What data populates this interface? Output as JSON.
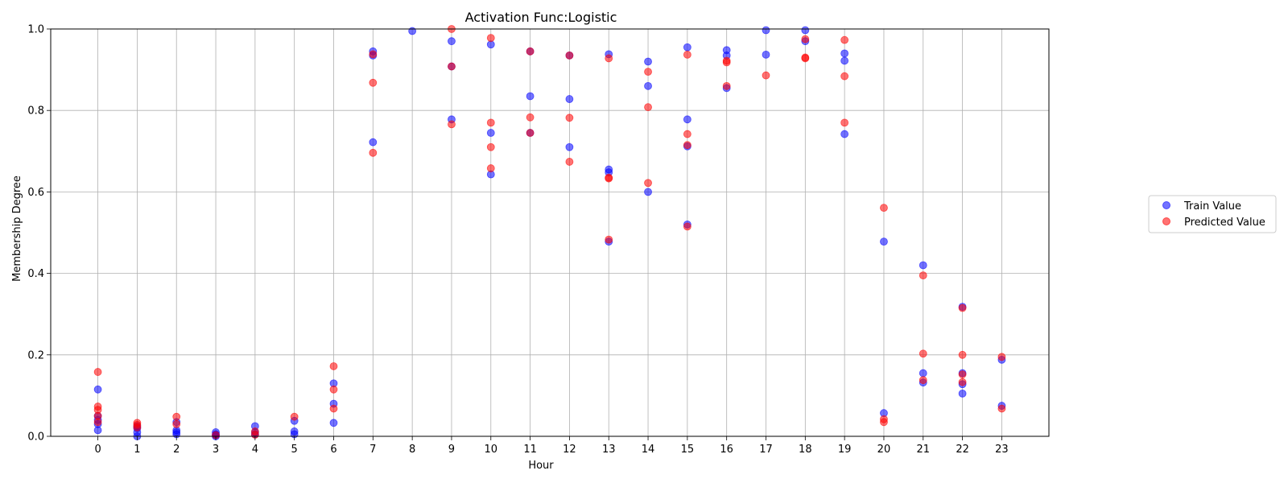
{
  "chart_data": {
    "type": "scatter",
    "title": "Activation Func:Logistic",
    "xlabel": "Hour",
    "ylabel": "Membership Degree",
    "xlim": [
      -1.2,
      24.2
    ],
    "ylim": [
      0,
      1
    ],
    "x_ticks": [
      0,
      1,
      2,
      3,
      4,
      5,
      6,
      7,
      8,
      9,
      10,
      11,
      12,
      13,
      14,
      15,
      16,
      17,
      18,
      19,
      20,
      21,
      22,
      23
    ],
    "y_ticks": [
      "0.0",
      "0.2",
      "0.4",
      "0.6",
      "0.8",
      "1.0"
    ],
    "grid": true,
    "legend_position": "right",
    "series": [
      {
        "name": "Train Value",
        "color": "#0000ff",
        "opacity": 0.55,
        "points": [
          [
            0,
            0.115
          ],
          [
            0,
            0.05
          ],
          [
            0,
            0.04
          ],
          [
            0,
            0.03
          ],
          [
            0,
            0.015
          ],
          [
            1,
            0.025
          ],
          [
            1,
            0.02
          ],
          [
            1,
            0.01
          ],
          [
            1,
            0.0
          ],
          [
            2,
            0.035
          ],
          [
            2,
            0.015
          ],
          [
            2,
            0.01
          ],
          [
            2,
            0.005
          ],
          [
            3,
            0.01
          ],
          [
            3,
            0.005
          ],
          [
            3,
            0.003
          ],
          [
            3,
            0.0
          ],
          [
            4,
            0.025
          ],
          [
            4,
            0.01
          ],
          [
            4,
            0.005
          ],
          [
            5,
            0.038
          ],
          [
            5,
            0.012
          ],
          [
            5,
            0.005
          ],
          [
            6,
            0.13
          ],
          [
            6,
            0.08
          ],
          [
            6,
            0.033
          ],
          [
            7,
            0.945
          ],
          [
            7,
            0.935
          ],
          [
            7,
            0.722
          ],
          [
            8,
            0.995
          ],
          [
            9,
            0.97
          ],
          [
            9,
            0.908
          ],
          [
            9,
            0.778
          ],
          [
            10,
            0.962
          ],
          [
            10,
            0.745
          ],
          [
            10,
            0.643
          ],
          [
            11,
            0.945
          ],
          [
            11,
            0.835
          ],
          [
            11,
            0.745
          ],
          [
            12,
            0.935
          ],
          [
            12,
            0.828
          ],
          [
            12,
            0.71
          ],
          [
            13,
            0.938
          ],
          [
            13,
            0.655
          ],
          [
            13,
            0.648
          ],
          [
            13,
            0.478
          ],
          [
            14,
            0.92
          ],
          [
            14,
            0.86
          ],
          [
            14,
            0.6
          ],
          [
            15,
            0.955
          ],
          [
            15,
            0.778
          ],
          [
            15,
            0.712
          ],
          [
            15,
            0.52
          ],
          [
            16,
            0.948
          ],
          [
            16,
            0.935
          ],
          [
            16,
            0.855
          ],
          [
            17,
            0.997
          ],
          [
            17,
            0.937
          ],
          [
            18,
            0.997
          ],
          [
            18,
            0.97
          ],
          [
            19,
            0.94
          ],
          [
            19,
            0.922
          ],
          [
            19,
            0.742
          ],
          [
            20,
            0.478
          ],
          [
            20,
            0.057
          ],
          [
            21,
            0.42
          ],
          [
            21,
            0.155
          ],
          [
            21,
            0.132
          ],
          [
            22,
            0.318
          ],
          [
            22,
            0.155
          ],
          [
            22,
            0.128
          ],
          [
            22,
            0.105
          ],
          [
            23,
            0.188
          ],
          [
            23,
            0.075
          ]
        ]
      },
      {
        "name": "Predicted Value",
        "color": "#ff0000",
        "opacity": 0.55,
        "points": [
          [
            0,
            0.158
          ],
          [
            0,
            0.073
          ],
          [
            0,
            0.065
          ],
          [
            0,
            0.05
          ],
          [
            0,
            0.035
          ],
          [
            1,
            0.033
          ],
          [
            1,
            0.028
          ],
          [
            1,
            0.022
          ],
          [
            2,
            0.048
          ],
          [
            2,
            0.03
          ],
          [
            3,
            0.003
          ],
          [
            4,
            0.012
          ],
          [
            4,
            0.004
          ],
          [
            5,
            0.048
          ],
          [
            6,
            0.172
          ],
          [
            6,
            0.115
          ],
          [
            6,
            0.068
          ],
          [
            7,
            0.938
          ],
          [
            7,
            0.868
          ],
          [
            7,
            0.696
          ],
          [
            9,
            1.0
          ],
          [
            9,
            0.908
          ],
          [
            9,
            0.766
          ],
          [
            10,
            0.978
          ],
          [
            10,
            0.77
          ],
          [
            10,
            0.71
          ],
          [
            10,
            0.658
          ],
          [
            11,
            0.945
          ],
          [
            11,
            0.783
          ],
          [
            11,
            0.745
          ],
          [
            12,
            0.935
          ],
          [
            12,
            0.782
          ],
          [
            12,
            0.674
          ],
          [
            13,
            0.928
          ],
          [
            13,
            0.635
          ],
          [
            13,
            0.633
          ],
          [
            13,
            0.483
          ],
          [
            14,
            0.895
          ],
          [
            14,
            0.808
          ],
          [
            14,
            0.622
          ],
          [
            15,
            0.937
          ],
          [
            15,
            0.742
          ],
          [
            15,
            0.715
          ],
          [
            15,
            0.515
          ],
          [
            16,
            0.922
          ],
          [
            16,
            0.918
          ],
          [
            16,
            0.86
          ],
          [
            17,
            0.886
          ],
          [
            18,
            0.975
          ],
          [
            18,
            0.93
          ],
          [
            18,
            0.928
          ],
          [
            19,
            0.973
          ],
          [
            19,
            0.884
          ],
          [
            19,
            0.77
          ],
          [
            20,
            0.561
          ],
          [
            20,
            0.042
          ],
          [
            20,
            0.035
          ],
          [
            21,
            0.395
          ],
          [
            21,
            0.203
          ],
          [
            21,
            0.138
          ],
          [
            22,
            0.315
          ],
          [
            22,
            0.2
          ],
          [
            22,
            0.152
          ],
          [
            22,
            0.133
          ],
          [
            23,
            0.195
          ],
          [
            23,
            0.068
          ]
        ]
      }
    ]
  }
}
